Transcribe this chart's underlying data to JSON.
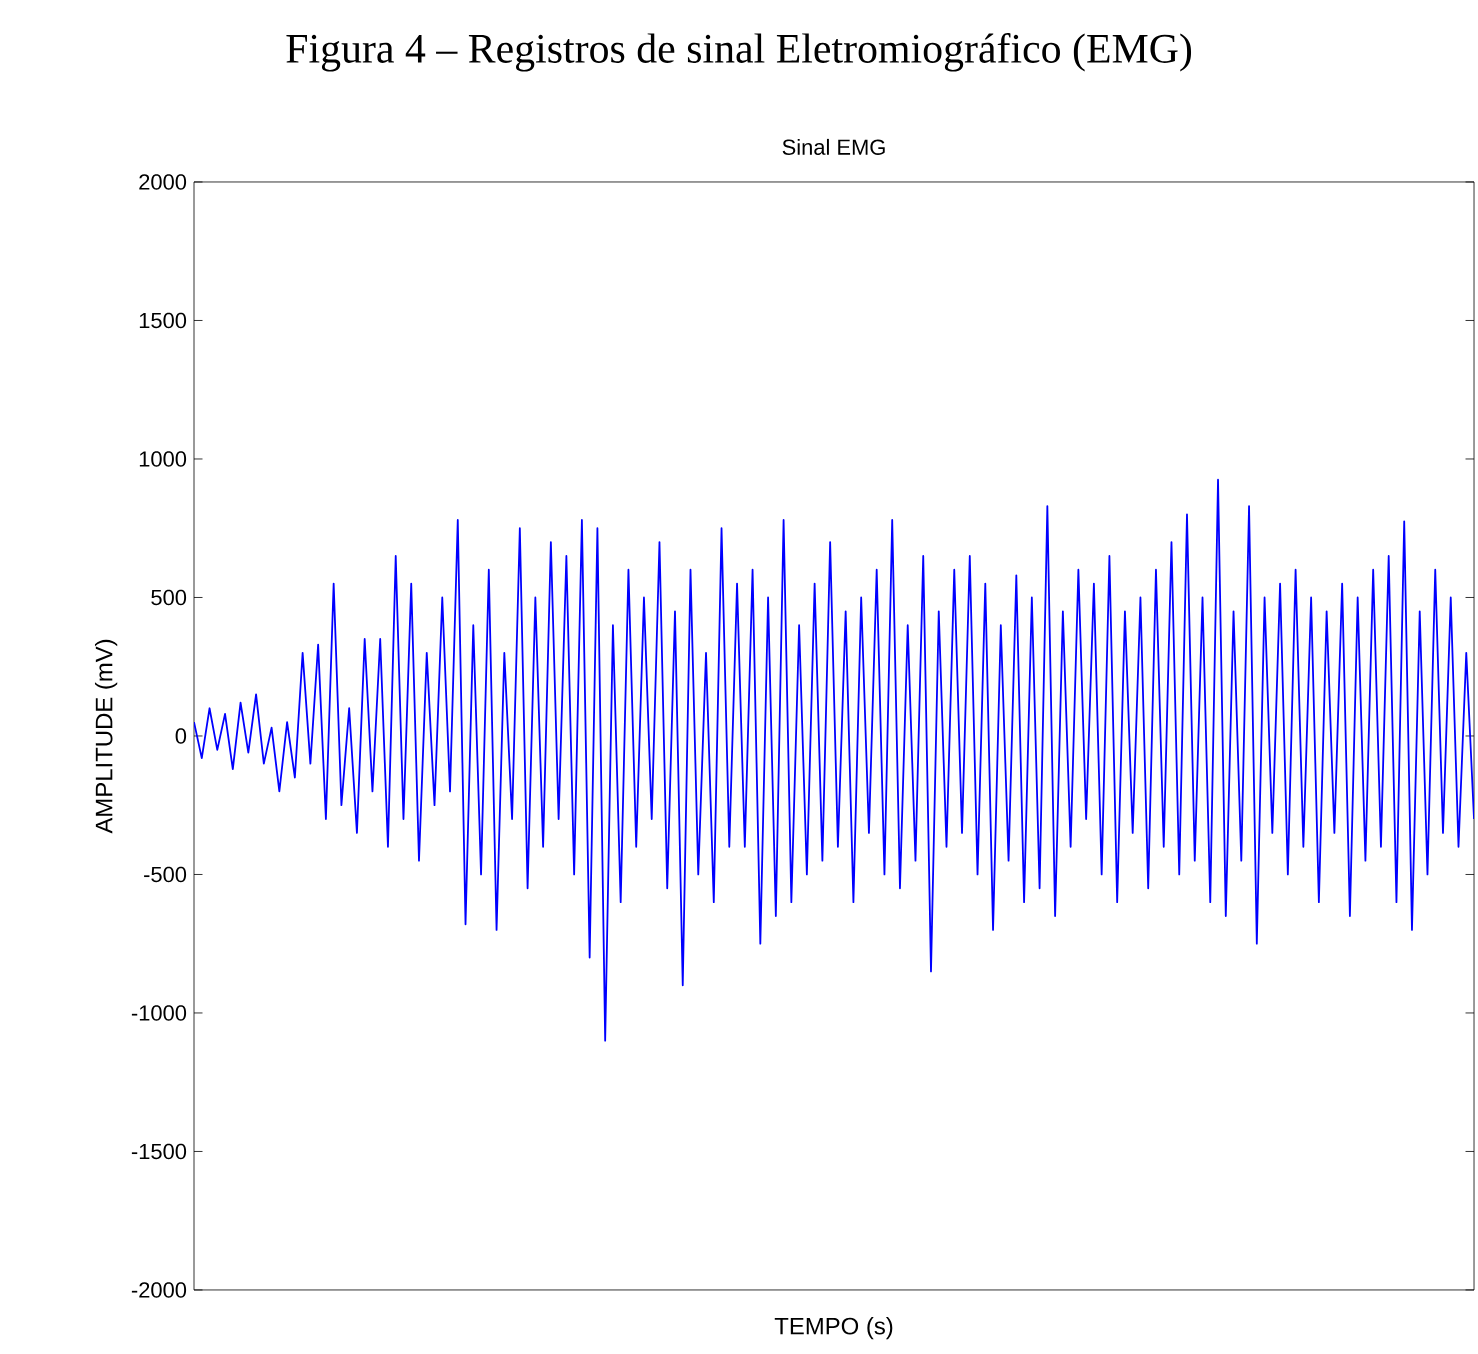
{
  "chart_data": {
    "type": "line",
    "title": "Figura 4 – Registros de sinal Eletromiográfico (EMG)",
    "subtitle": "Sinal EMG",
    "xlabel": "TEMPO (s)",
    "ylabel": "AMPLITUDE (mV)",
    "ylim": [
      -2000,
      2000
    ],
    "yticks": [
      -2000,
      -1500,
      -1000,
      -500,
      0,
      500,
      1000,
      1500,
      2000
    ],
    "grid": false,
    "marker": "none",
    "line_style": "solid",
    "categories": [
      null,
      null,
      null,
      null,
      null,
      null,
      null,
      null,
      null,
      null,
      null,
      null,
      null,
      null,
      null,
      null,
      null,
      null,
      null,
      null,
      null,
      null,
      null,
      null,
      null,
      null,
      null,
      null,
      null,
      null,
      null,
      null,
      null,
      null,
      null,
      null,
      null,
      null,
      null,
      null,
      null,
      null,
      null,
      null,
      null,
      null,
      null,
      null,
      null,
      null,
      null,
      null,
      null,
      null,
      null,
      null,
      null,
      null,
      null,
      null,
      null,
      null,
      null,
      null,
      null,
      null,
      null,
      null,
      null,
      null,
      null,
      null,
      null,
      null,
      null,
      null,
      null,
      null,
      null,
      null,
      null,
      null,
      null,
      null,
      null,
      null,
      null,
      null,
      null,
      null,
      null,
      null,
      null,
      null,
      null,
      null,
      null,
      null,
      null,
      null,
      null,
      null,
      null,
      null,
      null,
      null,
      null,
      null,
      null,
      null,
      null,
      null,
      null,
      null,
      null,
      null,
      null,
      null,
      null,
      null,
      null,
      null,
      null,
      null,
      null,
      null,
      null,
      null,
      null,
      null,
      null,
      null,
      null,
      null,
      null,
      null,
      null,
      null,
      null,
      null,
      null,
      null,
      null,
      null,
      null,
      null,
      null,
      null,
      null,
      null,
      null,
      null,
      null,
      null,
      null,
      null,
      null,
      null,
      null,
      null,
      null,
      null,
      null,
      null,
      null,
      null
    ],
    "series": [
      {
        "color": "#0000ff",
        "values": [
          50,
          -80,
          100,
          -50,
          80,
          -120,
          120,
          -60,
          150,
          -100,
          30,
          -200,
          50,
          -150,
          300,
          -100,
          330,
          -300,
          550,
          -250,
          100,
          -350,
          350,
          -200,
          350,
          -400,
          650,
          -300,
          550,
          -450,
          300,
          -250,
          500,
          -200,
          780,
          -680,
          400,
          -500,
          600,
          -700,
          300,
          -300,
          750,
          -550,
          500,
          -400,
          700,
          -300,
          650,
          -500,
          780,
          -800,
          750,
          -1100,
          400,
          -600,
          600,
          -400,
          500,
          -300,
          700,
          -550,
          450,
          -900,
          600,
          -500,
          300,
          -600,
          750,
          -400,
          550,
          -400,
          600,
          -750,
          500,
          -650,
          780,
          -600,
          400,
          -500,
          550,
          -450,
          700,
          -400,
          450,
          -600,
          500,
          -350,
          600,
          -500,
          780,
          -550,
          400,
          -450,
          650,
          -850,
          450,
          -400,
          600,
          -350,
          650,
          -500,
          550,
          -700,
          400,
          -450,
          580,
          -600,
          500,
          -550,
          830,
          -650,
          450,
          -400,
          600,
          -300,
          550,
          -500,
          650,
          -600,
          450,
          -350,
          500,
          -550,
          600,
          -400,
          700,
          -500,
          800,
          -450,
          500,
          -600,
          925,
          -650,
          450,
          -450,
          830,
          -750,
          500,
          -350,
          550,
          -500,
          600,
          -400,
          500,
          -600,
          450,
          -350,
          550,
          -650,
          500,
          -450,
          600,
          -400,
          650,
          -600,
          775,
          -700,
          450,
          -500,
          600,
          -350,
          500,
          -400,
          300,
          -300
        ]
      }
    ]
  }
}
